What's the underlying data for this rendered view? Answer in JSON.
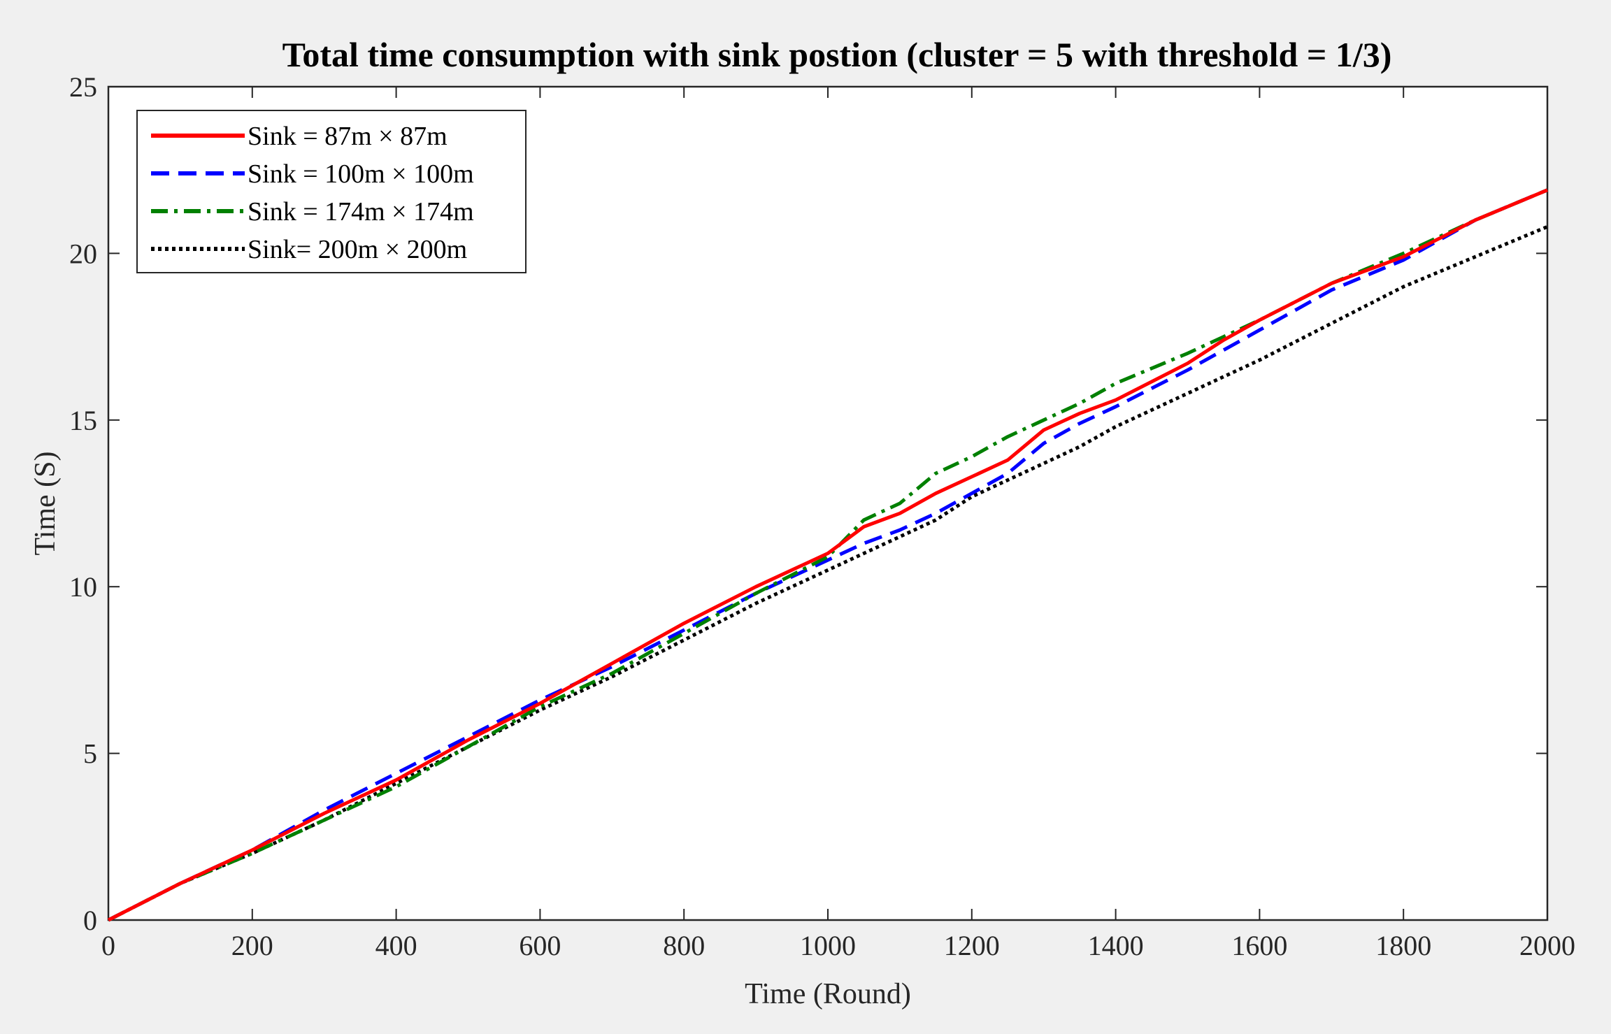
{
  "chart_data": {
    "type": "line",
    "title": "Total time consumption with sink postion (cluster = 5 with threshold = 1/3)",
    "xlabel": "Time (Round)",
    "ylabel": "Time (S)",
    "xlim": [
      0,
      2000
    ],
    "ylim": [
      0,
      25
    ],
    "xticks": [
      0,
      200,
      400,
      600,
      800,
      1000,
      1200,
      1400,
      1600,
      1800,
      2000
    ],
    "yticks": [
      0,
      5,
      10,
      15,
      20,
      25
    ],
    "grid": false,
    "legend_position": "top-left",
    "x": [
      0,
      100,
      200,
      300,
      400,
      500,
      600,
      700,
      800,
      900,
      1000,
      1050,
      1100,
      1150,
      1200,
      1250,
      1300,
      1350,
      1400,
      1500,
      1550,
      1600,
      1700,
      1800,
      1900,
      2000
    ],
    "series": [
      {
        "name": "Sink = 87m × 87m",
        "color": "#ff0000",
        "style": "solid",
        "values": [
          0,
          1.1,
          2.1,
          3.2,
          4.2,
          5.4,
          6.5,
          7.7,
          8.9,
          10.0,
          11.0,
          11.8,
          12.2,
          12.8,
          13.3,
          13.8,
          14.7,
          15.2,
          15.6,
          16.7,
          17.4,
          18.0,
          19.1,
          19.9,
          21.0,
          21.9
        ]
      },
      {
        "name": "Sink = 100m × 100m",
        "color": "#0000ff",
        "style": "dashed",
        "values": [
          0,
          1.1,
          2.1,
          3.3,
          4.4,
          5.5,
          6.6,
          7.6,
          8.7,
          9.8,
          10.8,
          11.3,
          11.7,
          12.2,
          12.8,
          13.4,
          14.3,
          14.9,
          15.4,
          16.5,
          17.1,
          17.7,
          18.9,
          19.8,
          21.0,
          21.9
        ]
      },
      {
        "name": "Sink = 174m × 174m",
        "color": "#008000",
        "style": "dashdot",
        "values": [
          0,
          1.1,
          2.0,
          3.0,
          4.0,
          5.2,
          6.4,
          7.4,
          8.6,
          9.8,
          10.9,
          12.0,
          12.5,
          13.4,
          13.9,
          14.5,
          15.0,
          15.5,
          16.1,
          17.0,
          17.5,
          18.0,
          19.1,
          20.0,
          21.0,
          21.9
        ]
      },
      {
        "name": "Sink= 200m × 200m",
        "color": "#000000",
        "style": "dotted",
        "values": [
          0,
          1.1,
          2.0,
          3.0,
          4.1,
          5.2,
          6.3,
          7.3,
          8.4,
          9.5,
          10.5,
          11.0,
          11.5,
          12.0,
          12.7,
          13.2,
          13.7,
          14.2,
          14.8,
          15.8,
          16.3,
          16.8,
          17.9,
          19.0,
          19.9,
          20.8
        ]
      }
    ]
  }
}
